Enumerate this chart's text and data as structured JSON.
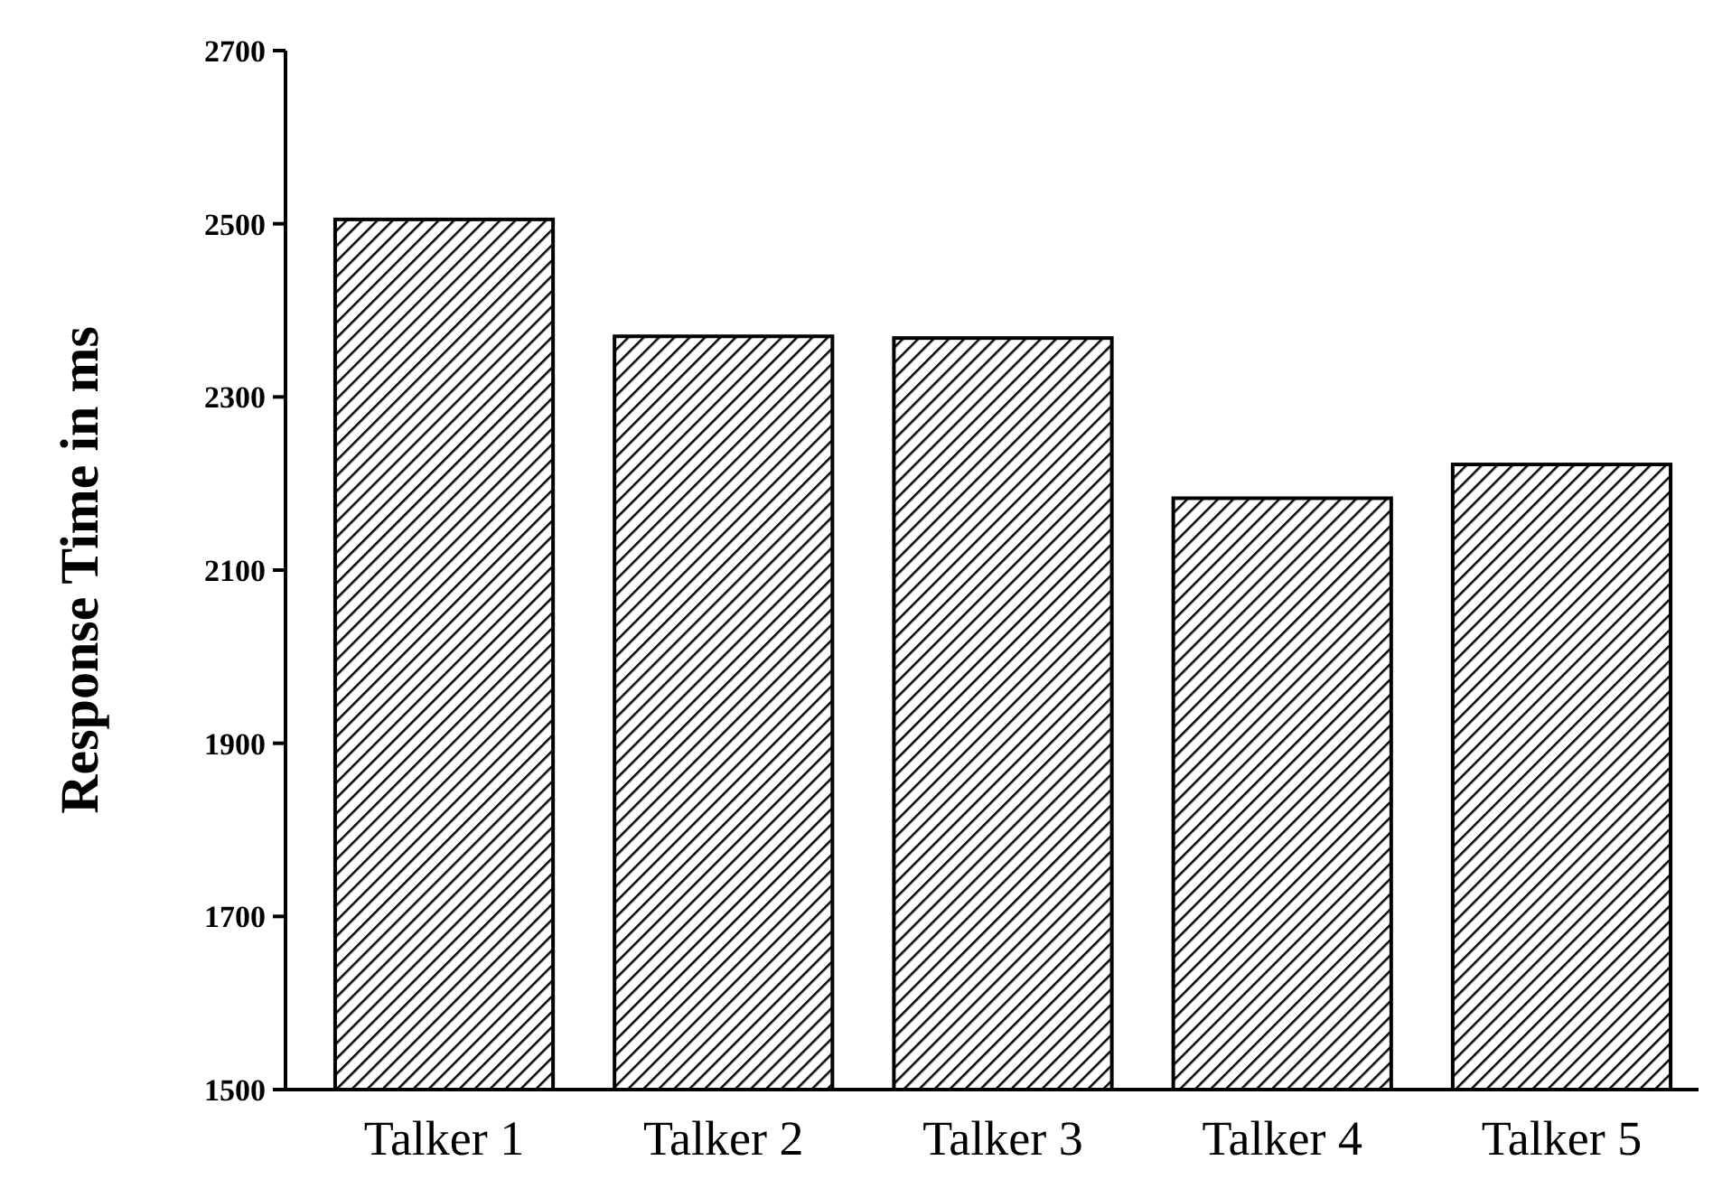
{
  "chart_data": {
    "type": "bar",
    "ylabel": "Response Time in ms",
    "categories": [
      "Talker 1",
      "Talker 2",
      "Talker 3",
      "Talker 4",
      "Talker 5"
    ],
    "values": [
      2505,
      2370,
      2368,
      2183,
      2222
    ],
    "color": "#000000",
    "ylim": [
      1500,
      2700
    ],
    "yticks": [
      1500,
      1700,
      1900,
      2100,
      2300,
      2500,
      2700
    ],
    "grid": false
  }
}
